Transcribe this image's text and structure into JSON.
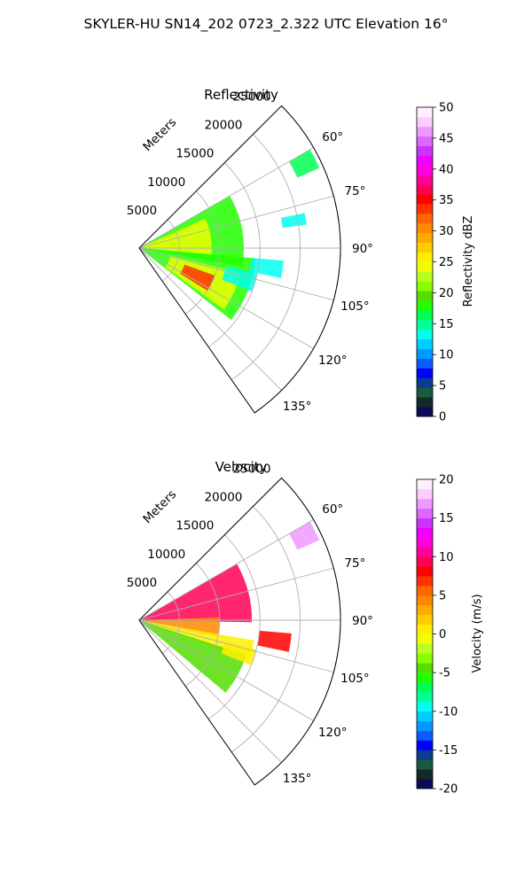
{
  "figure": {
    "suptitle": "SKYLER-HU  SN14_202  0723_2.322 UTC Elevation 16°"
  },
  "chart_data": [
    {
      "type": "heatmap",
      "subtype": "polar-sector",
      "title": "Reflectivity",
      "radial_axis_label": "Meters",
      "radial_ticks": [
        5000,
        10000,
        15000,
        20000,
        25000
      ],
      "radial_tick_labels": [
        "5000",
        "10000",
        "15000",
        "20000",
        "25000"
      ],
      "radial_range": [
        0,
        25000
      ],
      "angle_range_deg": [
        45,
        145
      ],
      "angle_ticks_deg": [
        60,
        75,
        90,
        105,
        120,
        135
      ],
      "angle_tick_labels": [
        "60°",
        "75°",
        "90°",
        "105°",
        "120°",
        "135°"
      ],
      "grid": true,
      "colorbar": {
        "label": "Reflectivity dBZ",
        "min": 0,
        "max": 50,
        "ticks": [
          0,
          5,
          10,
          15,
          20,
          25,
          30,
          35,
          40,
          45,
          50
        ],
        "tick_labels": [
          "0",
          "5",
          "10",
          "15",
          "20",
          "25",
          "30",
          "35",
          "40",
          "45",
          "50"
        ],
        "colors": [
          "#0b0b5a",
          "#142a2a",
          "#1c5a3e",
          "#0a3d8f",
          "#0000ff",
          "#0a5cff",
          "#0099ff",
          "#00ccff",
          "#00ffee",
          "#00ff99",
          "#00ff55",
          "#22ff00",
          "#55dd00",
          "#88ff00",
          "#bbff22",
          "#eeff00",
          "#ffee00",
          "#ffcc00",
          "#ffaa00",
          "#ff8800",
          "#ff6600",
          "#ff3300",
          "#ff0000",
          "#ff0055",
          "#ff0099",
          "#ff00dd",
          "#ee00ff",
          "#cc33ff",
          "#dd66ff",
          "#ee99ff",
          "#ffccff",
          "#fff0ff"
        ]
      },
      "regions": [
        {
          "r": [
            300,
            13000
          ],
          "az": [
            60,
            100
          ],
          "value": 18
        },
        {
          "r": [
            300,
            9000
          ],
          "az": [
            66,
            95
          ],
          "value": 24
        },
        {
          "r": [
            300,
            14500
          ],
          "az": [
            95,
            128
          ],
          "value": 18
        },
        {
          "r": [
            4000,
            13000
          ],
          "az": [
            104,
            126
          ],
          "value": 24
        },
        {
          "r": [
            6000,
            10000
          ],
          "az": [
            110,
            122
          ],
          "value": 33
        },
        {
          "r": [
            21500,
            24500
          ],
          "az": [
            60,
            66
          ],
          "value": 16
        },
        {
          "r": [
            14000,
            18000
          ],
          "az": [
            95,
            102
          ],
          "value": 14
        },
        {
          "r": [
            18000,
            21000
          ],
          "az": [
            78,
            82
          ],
          "value": 14
        },
        {
          "r": [
            11000,
            15000
          ],
          "az": [
            102,
            111
          ],
          "value": 13
        }
      ]
    },
    {
      "type": "heatmap",
      "subtype": "polar-sector",
      "title": "Velocity",
      "radial_axis_label": "Meters",
      "radial_ticks": [
        5000,
        10000,
        15000,
        20000,
        25000
      ],
      "radial_tick_labels": [
        "5000",
        "10000",
        "15000",
        "20000",
        "25000"
      ],
      "radial_range": [
        0,
        25000
      ],
      "angle_range_deg": [
        45,
        145
      ],
      "angle_ticks_deg": [
        60,
        75,
        90,
        105,
        120,
        135
      ],
      "angle_tick_labels": [
        "60°",
        "75°",
        "90°",
        "105°",
        "120°",
        "135°"
      ],
      "grid": true,
      "colorbar": {
        "label": "Velocity (m/s)",
        "min": -20,
        "max": 20,
        "ticks": [
          -20,
          -15,
          -10,
          -5,
          0,
          5,
          10,
          15,
          20
        ],
        "tick_labels": [
          "-20",
          "-15",
          "-10",
          "-5",
          "0",
          "5",
          "10",
          "15",
          "20"
        ],
        "colors": [
          "#0b0b5a",
          "#142a2a",
          "#1c5a3e",
          "#0a3d8f",
          "#0000ff",
          "#0a5cff",
          "#0099ff",
          "#00ccff",
          "#00ffee",
          "#00ff99",
          "#00ff55",
          "#22ff00",
          "#55dd00",
          "#88ff00",
          "#bbff22",
          "#eeff00",
          "#ffee00",
          "#ffcc00",
          "#ffaa00",
          "#ff8800",
          "#ff6600",
          "#ff3300",
          "#ff0000",
          "#ff0055",
          "#ff0099",
          "#ff00dd",
          "#ee00ff",
          "#cc33ff",
          "#dd66ff",
          "#ee99ff",
          "#ffccff",
          "#fff0ff"
        ]
      },
      "regions": [
        {
          "r": [
            300,
            14000
          ],
          "az": [
            60,
            91
          ],
          "value": 9
        },
        {
          "r": [
            300,
            10000
          ],
          "az": [
            88,
            102
          ],
          "value": 4
        },
        {
          "r": [
            300,
            14500
          ],
          "az": [
            100,
            110
          ],
          "value": 1
        },
        {
          "r": [
            300,
            14000
          ],
          "az": [
            108,
            130
          ],
          "value": -4
        },
        {
          "r": [
            21500,
            24500
          ],
          "az": [
            60,
            66
          ],
          "value": 17
        },
        {
          "r": [
            15000,
            19000
          ],
          "az": [
            95,
            102
          ],
          "value": 8
        },
        {
          "r": [
            11000,
            15000
          ],
          "az": [
            104,
            112
          ],
          "value": 0
        }
      ]
    }
  ]
}
